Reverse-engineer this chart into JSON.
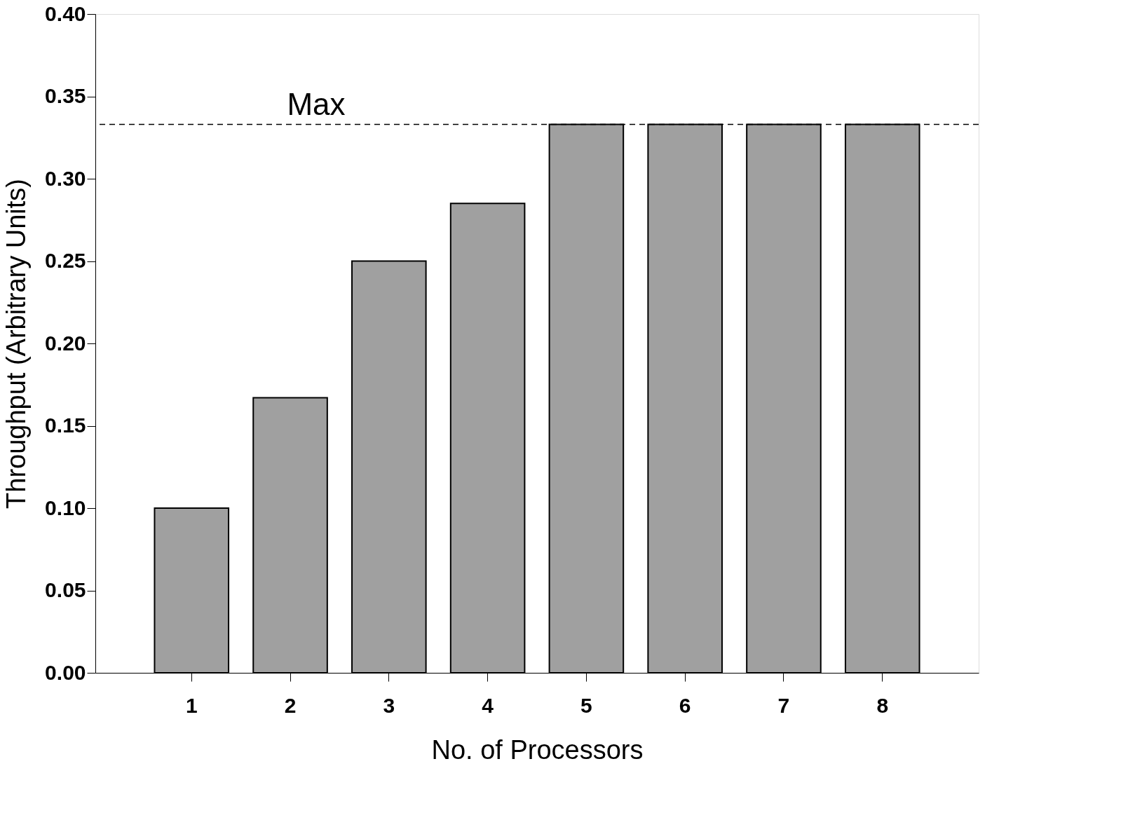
{
  "chart_data": {
    "type": "bar",
    "xlabel": "No. of Processors",
    "ylabel": "Throughput (Arbitrary Units)",
    "categories": [
      "1",
      "2",
      "3",
      "4",
      "5",
      "6",
      "7",
      "8"
    ],
    "values": [
      0.1,
      0.167,
      0.25,
      0.285,
      0.333,
      0.333,
      0.333,
      0.333
    ],
    "color": "#a0a0a0",
    "ylim": [
      0,
      0.4
    ],
    "yticks": [
      {
        "value": 0,
        "label": "0.00"
      },
      {
        "value": 0.05,
        "label": "0.05"
      },
      {
        "value": 0.1,
        "label": "0.10"
      },
      {
        "value": 0.15,
        "label": "0.15"
      },
      {
        "value": 0.2,
        "label": "0.20"
      },
      {
        "value": 0.25,
        "label": "0.25"
      },
      {
        "value": 0.3,
        "label": "0.30"
      },
      {
        "value": 0.35,
        "label": "0.35"
      },
      {
        "value": 0.4,
        "label": "0.40"
      }
    ],
    "ref_lines": [
      {
        "axis": "y",
        "value": 0.333,
        "label": "Max",
        "line_style": "dashed",
        "color": "#000000"
      }
    ],
    "grid": false
  }
}
